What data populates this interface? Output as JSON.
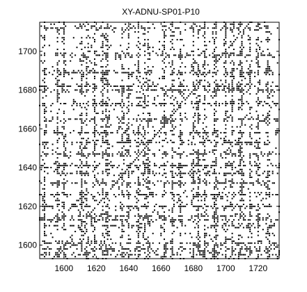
{
  "chart_data": {
    "type": "scatter",
    "title": "XY-ADNU-SP01-P10",
    "xlabel": "",
    "ylabel": "",
    "xlim": [
      1585,
      1733
    ],
    "ylim": [
      1593,
      1715
    ],
    "x_ticks": [
      1600,
      1620,
      1640,
      1660,
      1680,
      1700,
      1720
    ],
    "y_ticks": [
      1600,
      1620,
      1640,
      1660,
      1680,
      1700
    ],
    "x_tick_labels": [
      "1600",
      "1620",
      "1640",
      "1660",
      "1680",
      "1700",
      "1720"
    ],
    "y_tick_labels": [
      "1600",
      "1620",
      "1640",
      "1660",
      "1680",
      "1700"
    ],
    "grid": false,
    "marker_color": "#000000",
    "background_color": "#ffffff",
    "dense_columns_x": [
      1588,
      1596,
      1600,
      1611,
      1614,
      1619,
      1624,
      1626,
      1627,
      1636,
      1640,
      1646,
      1650,
      1652,
      1662,
      1667,
      1672,
      1680,
      1683,
      1687,
      1693,
      1694,
      1700,
      1704,
      1709,
      1710,
      1715,
      1720,
      1726
    ],
    "dense_rows_y": [
      1595,
      1598,
      1601,
      1610,
      1613,
      1615,
      1620,
      1626,
      1632,
      1637,
      1641,
      1647,
      1653,
      1658,
      1665,
      1673,
      1680,
      1682,
      1689,
      1698,
      1712
    ]
  }
}
